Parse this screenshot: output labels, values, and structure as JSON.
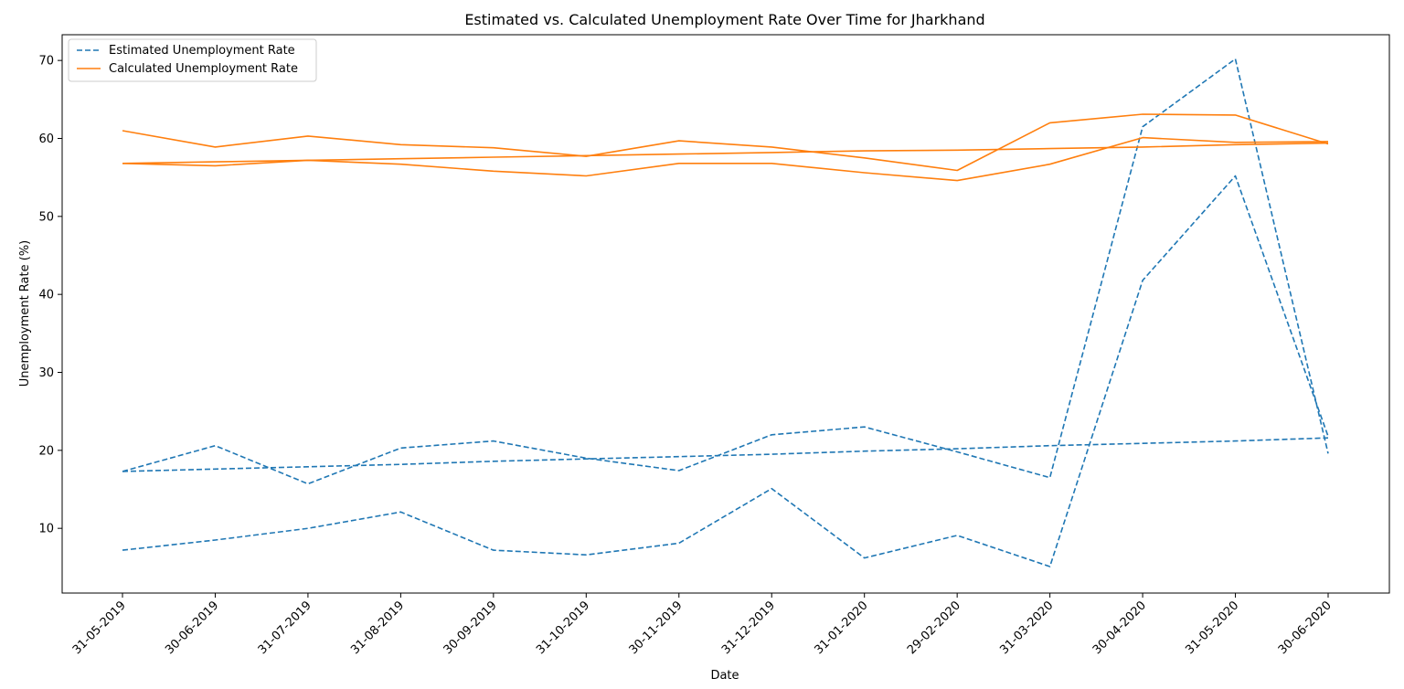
{
  "chart_data": {
    "type": "line",
    "title": "Estimated vs. Calculated Unemployment Rate Over Time for Jharkhand",
    "xlabel": "Date",
    "ylabel": "Unemployment Rate (%)",
    "categories": [
      "31-05-2019",
      "30-06-2019",
      "31-07-2019",
      "31-08-2019",
      "30-09-2019",
      "31-10-2019",
      "30-11-2019",
      "31-12-2019",
      "31-01-2020",
      "29-02-2020",
      "31-03-2020",
      "30-04-2020",
      "31-05-2020",
      "30-06-2020"
    ],
    "ylim": [
      1.7,
      73.3
    ],
    "yticks": [
      10,
      20,
      30,
      40,
      50,
      60,
      70
    ],
    "grid": false,
    "legend_position": "top-left",
    "legend": [
      {
        "label": "Estimated Unemployment Rate",
        "color": "#1f77b4",
        "style": "dashed"
      },
      {
        "label": "Calculated Unemployment Rate",
        "color": "#ff7f0e",
        "style": "solid"
      }
    ],
    "series": [
      {
        "name": "Estimated Unemployment Rate",
        "group": "estimated",
        "color": "#1f77b4",
        "style": "dashed",
        "values": [
          17.3,
          20.6,
          15.7,
          20.3,
          21.2,
          19.0,
          17.4,
          22.0,
          23.0,
          19.8,
          16.5,
          61.5,
          70.2,
          19.6
        ]
      },
      {
        "name": "Estimated Unemployment Rate",
        "group": "estimated",
        "color": "#1f77b4",
        "style": "dashed",
        "values": [
          7.2,
          8.5,
          10.0,
          12.1,
          7.2,
          6.6,
          8.1,
          15.1,
          6.2,
          9.1,
          5.1,
          41.8,
          55.2,
          21.8
        ]
      },
      {
        "name": "Estimated Unemployment Rate",
        "group": "estimated",
        "color": "#1f77b4",
        "style": "dashed",
        "values": [
          17.3,
          17.6,
          17.9,
          18.2,
          18.6,
          18.9,
          19.2,
          19.5,
          19.9,
          20.2,
          20.6,
          20.9,
          21.2,
          21.6
        ]
      },
      {
        "name": "Calculated Unemployment Rate",
        "group": "calculated",
        "color": "#ff7f0e",
        "style": "solid",
        "values": [
          61.0,
          58.9,
          60.3,
          59.2,
          58.8,
          57.7,
          59.7,
          58.9,
          57.5,
          55.9,
          62.0,
          63.1,
          63.0,
          59.3
        ]
      },
      {
        "name": "Calculated Unemployment Rate",
        "group": "calculated",
        "color": "#ff7f0e",
        "style": "solid",
        "values": [
          56.8,
          56.5,
          57.2,
          56.7,
          55.8,
          55.2,
          56.8,
          56.8,
          55.6,
          54.6,
          56.7,
          60.1,
          59.5,
          59.6
        ]
      },
      {
        "name": "Calculated Unemployment Rate",
        "group": "calculated",
        "color": "#ff7f0e",
        "style": "solid",
        "values": [
          56.8,
          57.0,
          57.2,
          57.4,
          57.6,
          57.8,
          58.0,
          58.2,
          58.4,
          58.5,
          58.7,
          58.9,
          59.2,
          59.4
        ]
      }
    ]
  }
}
